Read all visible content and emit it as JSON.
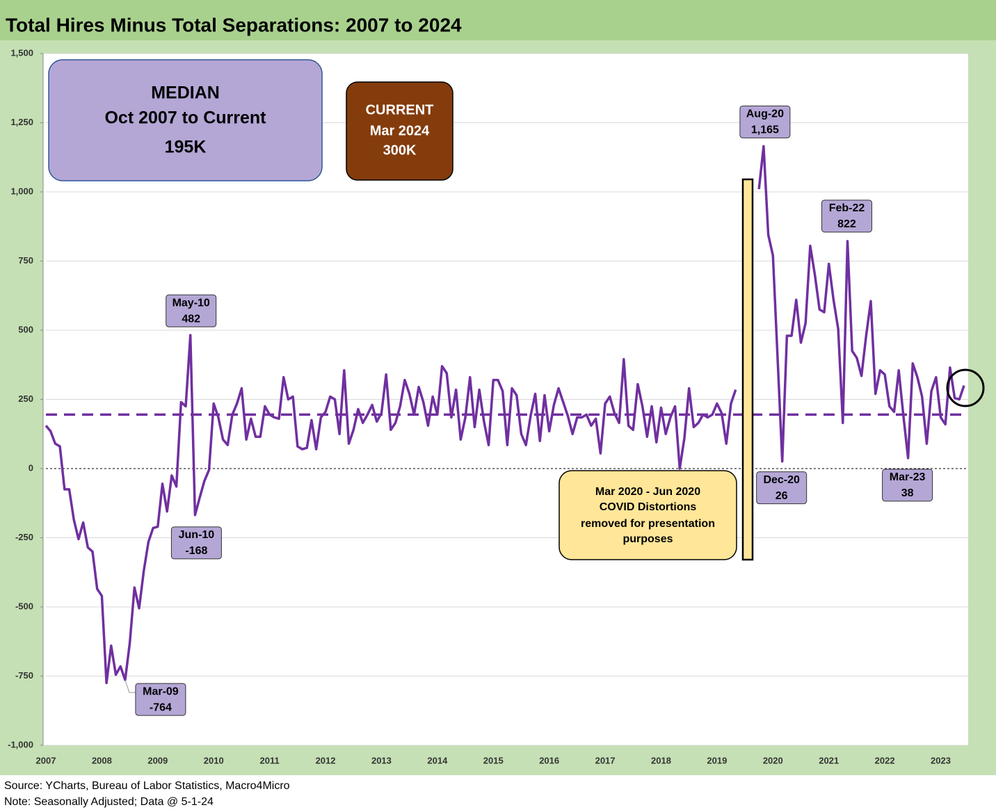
{
  "chart_data": {
    "type": "line",
    "title": "Total Hires Minus Total Separations: 2007 to 2024",
    "source": "Source: YCharts, Bureau of Labor Statistics, Macro4Micro",
    "note": "Note: Seasonally Adjusted; Data @ 5-1-24",
    "color": "#7030a0",
    "grid": true,
    "ylim": [
      -1000,
      1500
    ],
    "yticks": [
      {
        "value": -1000,
        "label": "-1,000"
      },
      -750,
      -500,
      -250,
      0,
      250,
      500,
      750,
      {
        "value": 1000,
        "label": "1,000"
      },
      {
        "value": 1250,
        "label": "1,250"
      },
      {
        "value": 1500,
        "label": "1,500"
      }
    ],
    "median_line": 195,
    "categories": [
      "2007",
      null,
      null,
      null,
      null,
      null,
      null,
      null,
      null,
      null,
      null,
      null,
      "2008",
      null,
      null,
      null,
      null,
      null,
      null,
      null,
      null,
      null,
      null,
      null,
      "2009",
      null,
      null,
      null,
      null,
      null,
      null,
      null,
      null,
      null,
      null,
      null,
      "2010",
      null,
      null,
      null,
      null,
      null,
      null,
      null,
      null,
      null,
      null,
      null,
      "2011",
      null,
      null,
      null,
      null,
      null,
      null,
      null,
      null,
      null,
      null,
      null,
      "2012",
      null,
      null,
      null,
      null,
      null,
      null,
      null,
      null,
      null,
      null,
      null,
      "2013",
      null,
      null,
      null,
      null,
      null,
      null,
      null,
      null,
      null,
      null,
      null,
      "2014",
      null,
      null,
      null,
      null,
      null,
      null,
      null,
      null,
      null,
      null,
      null,
      "2015",
      null,
      null,
      null,
      null,
      null,
      null,
      null,
      null,
      null,
      null,
      null,
      "2016",
      null,
      null,
      null,
      null,
      null,
      null,
      null,
      null,
      null,
      null,
      null,
      "2017",
      null,
      null,
      null,
      null,
      null,
      null,
      null,
      null,
      null,
      null,
      null,
      "2018",
      null,
      null,
      null,
      null,
      null,
      null,
      null,
      null,
      null,
      null,
      null,
      "2019",
      null,
      null,
      null,
      null,
      null,
      null,
      null,
      null,
      null,
      null,
      null,
      "2020",
      null,
      null,
      null,
      null,
      null,
      null,
      null,
      null,
      null,
      null,
      null,
      "2021",
      null,
      null,
      null,
      null,
      null,
      null,
      null,
      null,
      null,
      null,
      null,
      "2022",
      null,
      null,
      null,
      null,
      null,
      null,
      null,
      null,
      null,
      null,
      null,
      "2023",
      null,
      null,
      null,
      null,
      null
    ],
    "values": [
      155,
      135,
      90,
      80,
      -75,
      -75,
      -185,
      -255,
      -195,
      -285,
      -300,
      -435,
      -460,
      -775,
      -640,
      -745,
      -715,
      -764,
      -630,
      -430,
      -505,
      -370,
      -265,
      -215,
      -210,
      -55,
      -155,
      -25,
      -65,
      240,
      225,
      482,
      -168,
      -105,
      -45,
      -5,
      235,
      185,
      105,
      85,
      195,
      235,
      290,
      105,
      180,
      115,
      115,
      225,
      195,
      185,
      180,
      330,
      250,
      260,
      80,
      70,
      75,
      175,
      70,
      185,
      205,
      260,
      250,
      125,
      355,
      90,
      140,
      215,
      165,
      195,
      230,
      170,
      200,
      340,
      140,
      165,
      225,
      320,
      270,
      195,
      295,
      240,
      155,
      260,
      195,
      370,
      345,
      185,
      285,
      105,
      185,
      330,
      150,
      285,
      170,
      85,
      320,
      320,
      280,
      85,
      290,
      265,
      125,
      85,
      190,
      270,
      100,
      265,
      135,
      230,
      290,
      240,
      190,
      125,
      185,
      185,
      195,
      155,
      180,
      55,
      235,
      260,
      200,
      165,
      395,
      155,
      140,
      305,
      225,
      115,
      225,
      95,
      220,
      125,
      185,
      225,
      0,
      110,
      290,
      150,
      165,
      195,
      185,
      195,
      235,
      200,
      90,
      235,
      285,
      null,
      null,
      null,
      null,
      1010,
      1165,
      845,
      770,
      400,
      26,
      480,
      480,
      610,
      455,
      525,
      805,
      700,
      575,
      565,
      740,
      610,
      505,
      165,
      822,
      425,
      400,
      335,
      480,
      605,
      270,
      355,
      340,
      225,
      205,
      355,
      190,
      38,
      380,
      330,
      260,
      90,
      280,
      330,
      185,
      160,
      365,
      255,
      250,
      300
    ],
    "annotations": [
      {
        "label": "May-10",
        "value": 482,
        "value_label": "482"
      },
      {
        "label": "Jun-10",
        "value": -168,
        "value_label": "-168"
      },
      {
        "label": "Mar-09",
        "value": -764,
        "value_label": "-764"
      },
      {
        "label": "Aug-20",
        "value": 1165,
        "value_label": "1,165"
      },
      {
        "label": "Dec-20",
        "value": 26,
        "value_label": "26"
      },
      {
        "label": "Feb-22",
        "value": 822,
        "value_label": "822"
      },
      {
        "label": "Mar-23",
        "value": 38,
        "value_label": "38"
      }
    ],
    "text_boxes": [
      {
        "lines": [
          "MEDIAN",
          "Oct 2007 to Current",
          "195K"
        ]
      },
      {
        "lines": [
          "CURRENT",
          "Mar 2024",
          "300K"
        ]
      },
      {
        "lines": [
          "Mar 2020 - Jun 2020",
          "COVID Distortions",
          "removed for presentation",
          "purposes"
        ]
      }
    ]
  }
}
